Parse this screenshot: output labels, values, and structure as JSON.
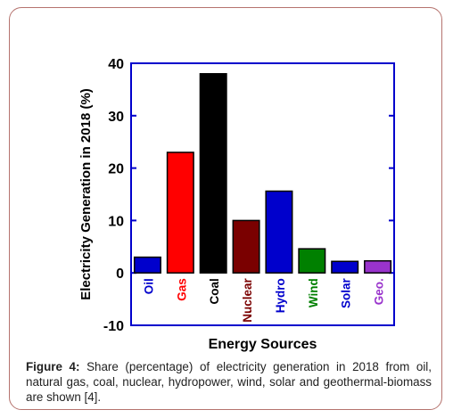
{
  "figure": {
    "caption_label": "Figure 4:",
    "caption_text": " Share (percentage) of electricity generation in 2018 from oil, natural gas, coal, nuclear, hydropower, wind, solar and geothermal-biomass are shown [4]."
  },
  "colors": {
    "frame_border": "#b5736e",
    "axis_box": "#0000cc",
    "oil": "#0000cc",
    "gas": "#ff0000",
    "coal": "#000000",
    "nuclear": "#7a0000",
    "hydro": "#0000cc",
    "wind": "#008000",
    "solar": "#0000cc",
    "geo": "#9933cc"
  },
  "chart_data": {
    "type": "bar",
    "xlabel": "Energy Sources",
    "ylabel": "Electricity Generation in 2018 (%)",
    "ylim": [
      -10,
      40
    ],
    "yticks": [
      -10,
      0,
      10,
      20,
      30,
      40
    ],
    "ytick_labels": [
      "-10",
      "0",
      "10",
      "20",
      "30",
      "40"
    ],
    "categories": [
      "Oil",
      "Gas",
      "Coal",
      "Nuclear",
      "Hydro",
      "Wind",
      "Solar",
      "Geo."
    ],
    "values": [
      3,
      23,
      38,
      10,
      15.6,
      4.6,
      2.2,
      2.3
    ],
    "bar_colors": [
      "#0000cc",
      "#ff0000",
      "#000000",
      "#7a0000",
      "#0000cc",
      "#008000",
      "#0000cc",
      "#9933cc"
    ],
    "grid": false,
    "legend": "none"
  }
}
